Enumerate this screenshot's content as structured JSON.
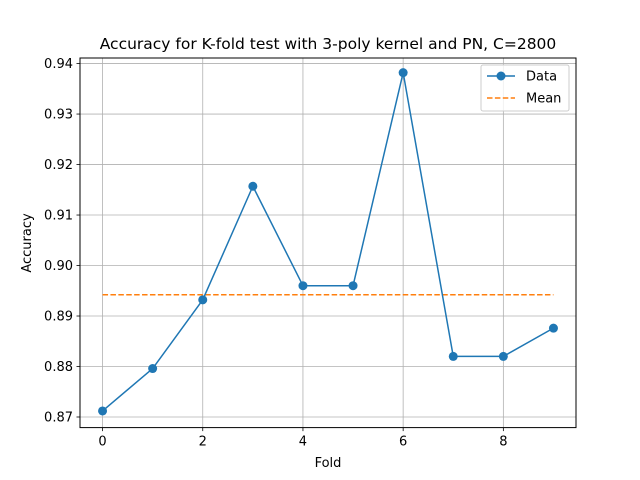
{
  "chart_data": {
    "type": "line",
    "title": "Accuracy for K-fold test with 3-poly kernel and PN, C=2800",
    "xlabel": "Fold",
    "ylabel": "Accuracy",
    "xlim": [
      -0.45,
      9.45
    ],
    "ylim": [
      0.8679,
      0.9411
    ],
    "xticks": [
      0,
      2,
      4,
      6,
      8
    ],
    "yticks": [
      0.87,
      0.88,
      0.89,
      0.9,
      0.91,
      0.92,
      0.93,
      0.94
    ],
    "ytick_labels": [
      "0.87",
      "0.88",
      "0.89",
      "0.90",
      "0.91",
      "0.92",
      "0.93",
      "0.94"
    ],
    "grid": true,
    "legend_position": "upper right",
    "series": [
      {
        "name": "Data",
        "style": "solid-line-with-circle-markers",
        "color": "#1f77b4",
        "x": [
          0,
          1,
          2,
          3,
          4,
          5,
          6,
          7,
          8,
          9
        ],
        "y": [
          0.8712,
          0.8796,
          0.8932,
          0.9157,
          0.896,
          0.896,
          0.9382,
          0.882,
          0.882,
          0.8876
        ]
      },
      {
        "name": "Mean",
        "style": "dashed-line",
        "color": "#ff7f0e",
        "x": [
          0,
          9
        ],
        "y": [
          0.8942,
          0.8942
        ]
      }
    ]
  }
}
